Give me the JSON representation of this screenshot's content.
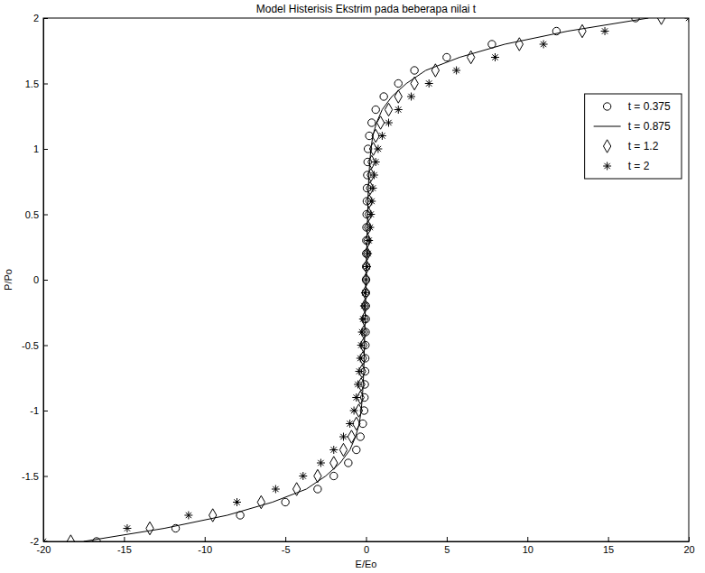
{
  "chart_data": {
    "type": "line",
    "title": "Model Histerisis Ekstrim pada beberapa nilai t",
    "x_label": "E/Eo",
    "y_label": "P/Po",
    "xlim": [
      -20,
      20
    ],
    "xticks": [
      -20,
      -15,
      -10,
      -5,
      0,
      5,
      10,
      15,
      20
    ],
    "ylim": [
      -2,
      2
    ],
    "yticks": [
      -2,
      -1.5,
      -1,
      -0.5,
      0,
      0.5,
      1,
      1.5,
      2
    ],
    "grid": false,
    "legend": "right",
    "series": [
      {
        "name": "t = 0.375",
        "color": "#000000",
        "marker": "circle",
        "line_style": "none",
        "x": [
          -16.7,
          -11.8,
          -7.8,
          -5,
          -3,
          -2,
          -1.1,
          -0.6,
          -0.35,
          -0.2,
          -0.12,
          -0.1,
          -0.08,
          -0.06,
          -0.05,
          -0.04,
          -0.03,
          -0.02,
          -0.015,
          -0.01,
          0,
          0.01,
          0.015,
          0.02,
          0.03,
          0.04,
          0.05,
          0.06,
          0.08,
          0.1,
          0.12,
          0.2,
          0.35,
          0.6,
          1.1,
          2,
          3,
          5,
          7.8,
          11.8,
          16.7
        ],
        "values": [
          -2,
          -1.9,
          -1.8,
          -1.7,
          -1.6,
          -1.5,
          -1.4,
          -1.3,
          -1.2,
          -1.1,
          -1,
          -0.9,
          -0.8,
          -0.7,
          -0.6,
          -0.5,
          -0.4,
          -0.3,
          -0.2,
          -0.1,
          0,
          0.1,
          0.2,
          0.3,
          0.4,
          0.5,
          0.6,
          0.7,
          0.8,
          0.9,
          1,
          1.1,
          1.2,
          1.3,
          1.4,
          1.5,
          1.6,
          1.7,
          1.8,
          1.9,
          2
        ]
      },
      {
        "name": "t = 0.875",
        "color": "#000000",
        "marker": "none",
        "line_style": "solid",
        "x": [
          -17.5,
          -12.5,
          -8.6,
          -5.8,
          -3.7,
          -2.5,
          -1.6,
          -1,
          -0.65,
          -0.42,
          -0.3,
          -0.23,
          -0.18,
          -0.14,
          -0.12,
          -0.1,
          -0.08,
          -0.06,
          -0.04,
          -0.02,
          0,
          0.02,
          0.04,
          0.06,
          0.08,
          0.1,
          0.12,
          0.14,
          0.18,
          0.23,
          0.3,
          0.42,
          0.65,
          1,
          1.6,
          2.5,
          3.7,
          5.8,
          8.6,
          12.5,
          17.5
        ],
        "values": [
          -2,
          -1.9,
          -1.8,
          -1.7,
          -1.6,
          -1.5,
          -1.4,
          -1.3,
          -1.2,
          -1.1,
          -1,
          -0.9,
          -0.8,
          -0.7,
          -0.6,
          -0.5,
          -0.4,
          -0.3,
          -0.2,
          -0.1,
          0,
          0.1,
          0.2,
          0.3,
          0.4,
          0.5,
          0.6,
          0.7,
          0.8,
          0.9,
          1,
          1.1,
          1.2,
          1.3,
          1.4,
          1.5,
          1.6,
          1.7,
          1.8,
          1.9,
          2
        ]
      },
      {
        "name": "t = 1.2",
        "color": "#000000",
        "marker": "diamond",
        "line_style": "none",
        "x": [
          -18.3,
          -13.4,
          -9.5,
          -6.5,
          -4.3,
          -3,
          -2,
          -1.4,
          -0.9,
          -0.6,
          -0.45,
          -0.35,
          -0.3,
          -0.25,
          -0.2,
          -0.17,
          -0.13,
          -0.1,
          -0.07,
          -0.03,
          0,
          0.03,
          0.07,
          0.1,
          0.13,
          0.17,
          0.2,
          0.25,
          0.3,
          0.35,
          0.45,
          0.6,
          0.9,
          1.4,
          2,
          3,
          4.3,
          6.5,
          9.5,
          13.4,
          18.3
        ],
        "values": [
          -2,
          -1.9,
          -1.8,
          -1.7,
          -1.6,
          -1.5,
          -1.4,
          -1.3,
          -1.2,
          -1.1,
          -1,
          -0.9,
          -0.8,
          -0.7,
          -0.6,
          -0.5,
          -0.4,
          -0.3,
          -0.2,
          -0.1,
          0,
          0.1,
          0.2,
          0.3,
          0.4,
          0.5,
          0.6,
          0.7,
          0.8,
          0.9,
          1,
          1.1,
          1.2,
          1.3,
          1.4,
          1.5,
          1.6,
          1.7,
          1.8,
          1.9,
          2
        ]
      },
      {
        "name": "t = 2",
        "color": "#000000",
        "marker": "asterisk",
        "line_style": "none",
        "x": [
          -20,
          -14.8,
          -11,
          -8,
          -5.6,
          -3.9,
          -2.8,
          -2,
          -1.4,
          -1,
          -0.75,
          -0.6,
          -0.5,
          -0.42,
          -0.35,
          -0.3,
          -0.25,
          -0.18,
          -0.12,
          -0.06,
          0,
          0.06,
          0.12,
          0.18,
          0.25,
          0.3,
          0.35,
          0.42,
          0.5,
          0.6,
          0.75,
          1,
          1.4,
          2,
          2.8,
          3.9,
          5.6,
          8,
          11,
          14.8,
          20
        ],
        "values": [
          -2,
          -1.9,
          -1.8,
          -1.7,
          -1.6,
          -1.5,
          -1.4,
          -1.3,
          -1.2,
          -1.1,
          -1,
          -0.9,
          -0.8,
          -0.7,
          -0.6,
          -0.5,
          -0.4,
          -0.3,
          -0.2,
          -0.1,
          0,
          0.1,
          0.2,
          0.3,
          0.4,
          0.5,
          0.6,
          0.7,
          0.8,
          0.9,
          1,
          1.1,
          1.2,
          1.3,
          1.4,
          1.5,
          1.6,
          1.7,
          1.8,
          1.9,
          2
        ]
      }
    ]
  }
}
